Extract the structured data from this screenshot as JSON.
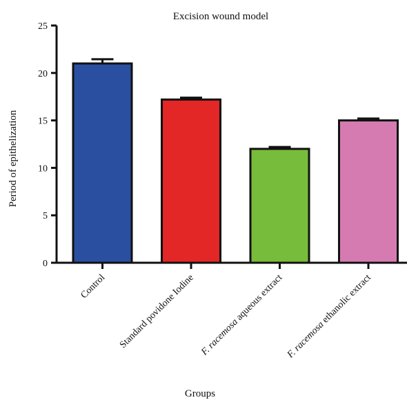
{
  "chart_data": {
    "type": "bar",
    "title": "Excision wound model",
    "xlabel": "Groups",
    "ylabel": "Period of epithelization",
    "ylim": [
      0,
      25
    ],
    "yticks": [
      0,
      5,
      10,
      15,
      20,
      25
    ],
    "grid": false,
    "legend": "none",
    "categories": [
      {
        "prefix": "",
        "italic": "",
        "suffix": "Control"
      },
      {
        "prefix": "",
        "italic": "",
        "suffix": "Standard povidone Iodine"
      },
      {
        "prefix": "F. ",
        "italic": "racemosa",
        "suffix": " aqueous extract"
      },
      {
        "prefix": "F. ",
        "italic": "racemosa",
        "suffix": " ethanolic extract"
      }
    ],
    "values": [
      21.0,
      17.2,
      12.0,
      15.0
    ],
    "errors": [
      0.45,
      0.2,
      0.2,
      0.2
    ],
    "colors": [
      "#2a4fa0",
      "#e32626",
      "#77bc3a",
      "#d67bb2"
    ]
  }
}
